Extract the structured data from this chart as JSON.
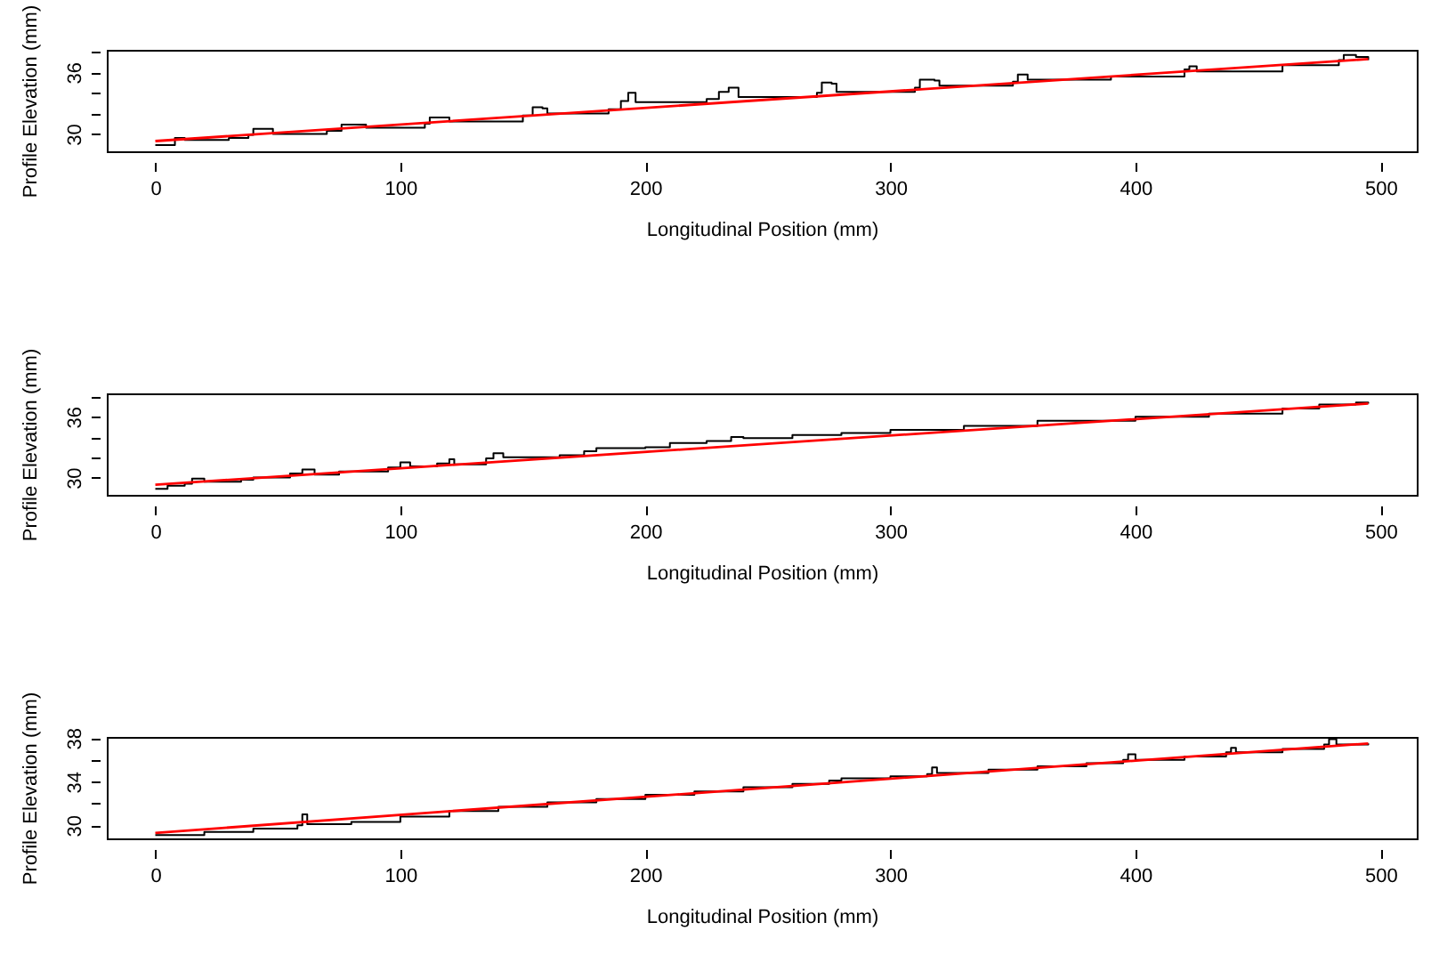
{
  "chart_data": [
    {
      "type": "line",
      "xlabel": "Longitudinal Position (mm)",
      "ylabel": "Profile Elevation (mm)",
      "xlim": [
        -19.8,
        514.8
      ],
      "xticks": [
        0,
        100,
        200,
        300,
        400,
        500
      ],
      "ylim": [
        28.3,
        38.2
      ],
      "yticks": [
        30,
        {
          "value": 32,
          "label": null
        },
        {
          "value": 34,
          "label": null
        },
        36,
        {
          "value": 38,
          "label": null
        }
      ],
      "grid": false,
      "series": [
        {
          "type": "step",
          "color": "#000000",
          "x": [
            0,
            7,
            8,
            12,
            30,
            38,
            40,
            46,
            48,
            70,
            76,
            84,
            86,
            110,
            112,
            118,
            120,
            150,
            154,
            158,
            160,
            185,
            190,
            193,
            196,
            225,
            230,
            234,
            238,
            270,
            272,
            276,
            278,
            310,
            312,
            318,
            320,
            350,
            352,
            356,
            390,
            420,
            422,
            425,
            460,
            483,
            485,
            490,
            495
          ],
          "values": [
            28.9,
            28.9,
            29.6,
            29.4,
            29.6,
            29.9,
            30.5,
            30.5,
            30.0,
            30.3,
            30.9,
            30.9,
            30.6,
            31.0,
            31.6,
            31.6,
            31.2,
            31.8,
            32.6,
            32.5,
            32.0,
            32.4,
            33.2,
            34.0,
            33.1,
            33.4,
            34.1,
            34.5,
            33.6,
            34.0,
            35.0,
            34.9,
            34.1,
            34.5,
            35.3,
            35.2,
            34.7,
            35.1,
            35.8,
            35.3,
            35.6,
            36.3,
            36.6,
            36.1,
            36.7,
            37.2,
            37.7,
            37.5,
            37.2
          ]
        },
        {
          "type": "line",
          "color": "#ff0000",
          "x": [
            0,
            495
          ],
          "values": [
            29.3,
            37.3
          ]
        }
      ]
    },
    {
      "type": "line",
      "xlabel": "Longitudinal Position (mm)",
      "ylabel": "Profile Elevation (mm)",
      "xlim": [
        -19.8,
        514.8
      ],
      "xticks": [
        0,
        100,
        200,
        300,
        400,
        500
      ],
      "ylim": [
        28.3,
        38.3
      ],
      "yticks": [
        30,
        {
          "value": 32,
          "label": null
        },
        {
          "value": 34,
          "label": null
        },
        36,
        {
          "value": 38,
          "label": null
        }
      ],
      "grid": false,
      "series": [
        {
          "type": "step",
          "color": "#000000",
          "x": [
            0,
            5,
            12,
            15,
            20,
            35,
            40,
            55,
            60,
            65,
            75,
            95,
            100,
            104,
            115,
            120,
            122,
            135,
            138,
            142,
            165,
            175,
            180,
            200,
            210,
            225,
            235,
            240,
            260,
            280,
            300,
            330,
            360,
            400,
            430,
            460,
            475,
            490,
            495
          ],
          "values": [
            28.9,
            29.2,
            29.4,
            29.9,
            29.6,
            29.8,
            30.0,
            30.4,
            30.8,
            30.3,
            30.6,
            31.0,
            31.5,
            31.1,
            31.4,
            31.8,
            31.3,
            31.9,
            32.4,
            32.0,
            32.2,
            32.6,
            32.9,
            33.0,
            33.4,
            33.6,
            34.0,
            33.9,
            34.2,
            34.4,
            34.7,
            35.1,
            35.6,
            36.0,
            36.3,
            36.8,
            37.2,
            37.4,
            37.3
          ]
        },
        {
          "type": "line",
          "color": "#ff0000",
          "x": [
            0,
            495
          ],
          "values": [
            29.3,
            37.3
          ]
        }
      ]
    },
    {
      "type": "line",
      "xlabel": "Longitudinal Position (mm)",
      "ylabel": "Profile Elevation (mm)",
      "xlim": [
        -19.8,
        514.8
      ],
      "xticks": [
        0,
        100,
        200,
        300,
        400,
        500
      ],
      "ylim": [
        28.8,
        38.1
      ],
      "yticks": [
        30,
        {
          "value": 32,
          "label": null
        },
        34,
        {
          "value": 36,
          "label": null
        },
        38
      ],
      "grid": false,
      "series": [
        {
          "type": "step",
          "color": "#000000",
          "x": [
            0,
            20,
            40,
            58,
            60,
            62,
            80,
            100,
            120,
            140,
            160,
            180,
            200,
            220,
            240,
            260,
            275,
            280,
            300,
            315,
            317,
            319,
            340,
            360,
            380,
            395,
            397,
            400,
            420,
            437,
            439,
            441,
            460,
            477,
            479,
            482,
            495
          ],
          "values": [
            29.1,
            29.4,
            29.7,
            30.0,
            31.0,
            30.1,
            30.3,
            30.8,
            31.3,
            31.7,
            32.1,
            32.4,
            32.8,
            33.1,
            33.5,
            33.8,
            34.1,
            34.3,
            34.5,
            34.7,
            35.3,
            34.8,
            35.1,
            35.4,
            35.7,
            36.0,
            36.5,
            36.0,
            36.3,
            36.7,
            37.1,
            36.7,
            37.0,
            37.4,
            37.9,
            37.4,
            37.5
          ]
        },
        {
          "type": "line",
          "color": "#ff0000",
          "x": [
            0,
            495
          ],
          "values": [
            29.3,
            37.5
          ]
        }
      ]
    }
  ]
}
